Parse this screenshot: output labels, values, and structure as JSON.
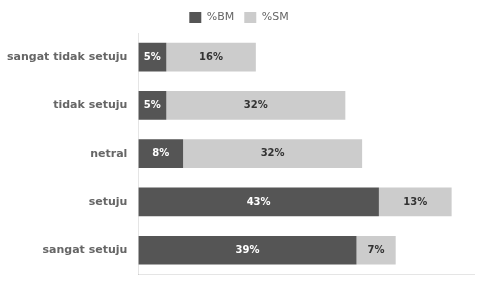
{
  "chart_data": {
    "type": "bar",
    "orientation": "horizontal",
    "stacked": true,
    "categories": [
      "sangat setuju",
      "setuju",
      "netral",
      "tidak setuju",
      "sangat tidak setuju"
    ],
    "series": [
      {
        "name": "%BM",
        "color": "#555555",
        "values": [
          39,
          43,
          8,
          5,
          5
        ],
        "value_labels": [
          "39%",
          "43%",
          "8%",
          "5%",
          "5%"
        ]
      },
      {
        "name": "%SM",
        "color": "#cccccc",
        "values": [
          7,
          13,
          32,
          32,
          16
        ],
        "value_labels": [
          "7%",
          "13%",
          "32%",
          "32%",
          "16%"
        ]
      }
    ],
    "xlim": [
      0,
      60
    ],
    "data_labels": true,
    "tick_labels": "y",
    "grid": false,
    "legend": "top"
  }
}
